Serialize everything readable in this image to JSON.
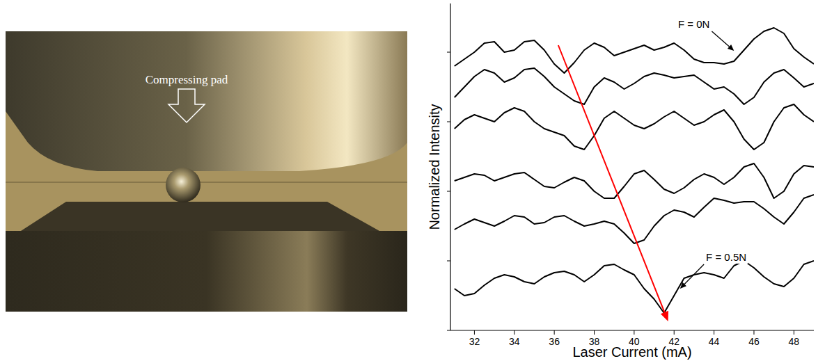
{
  "chart_data": {
    "type": "line",
    "x_label": "Laser Current (mA)",
    "y_label": "Normalized Intensity",
    "x": [
      31,
      31.5,
      32,
      32.5,
      33,
      33.5,
      34,
      34.5,
      35,
      35.5,
      36,
      36.5,
      37,
      37.5,
      38,
      38.5,
      39,
      39.5,
      40,
      40.5,
      41,
      41.5,
      42,
      42.5,
      43,
      43.5,
      44,
      44.5,
      45,
      45.5,
      46,
      46.5,
      47,
      47.5,
      48,
      48.5,
      49
    ],
    "series": [
      {
        "color": "#000000",
        "values": [
          380,
          390,
          400,
          413,
          415,
          400,
          403,
          415,
          417,
          403,
          383,
          370,
          385,
          403,
          413,
          407,
          395,
          400,
          405,
          410,
          403,
          407,
          413,
          403,
          390,
          385,
          385,
          383,
          387,
          403,
          419,
          430,
          435,
          427,
          405,
          393,
          383
        ]
      },
      {
        "color": "#000000",
        "values": [
          335,
          350,
          365,
          375,
          370,
          357,
          363,
          375,
          377,
          365,
          350,
          340,
          330,
          325,
          350,
          363,
          357,
          347,
          355,
          365,
          370,
          367,
          363,
          365,
          367,
          357,
          347,
          350,
          340,
          325,
          335,
          357,
          370,
          375,
          363,
          350,
          355
        ]
      },
      {
        "color": "#000000",
        "values": [
          290,
          303,
          310,
          305,
          300,
          313,
          320,
          315,
          300,
          290,
          285,
          280,
          265,
          260,
          280,
          305,
          315,
          305,
          295,
          290,
          297,
          307,
          315,
          305,
          295,
          300,
          310,
          317,
          300,
          275,
          260,
          270,
          300,
          320,
          325,
          310,
          300
        ]
      },
      {
        "color": "#000000",
        "values": [
          215,
          220,
          225,
          223,
          215,
          220,
          225,
          227,
          217,
          207,
          205,
          213,
          220,
          215,
          200,
          190,
          190,
          207,
          225,
          230,
          217,
          203,
          197,
          205,
          217,
          225,
          220,
          210,
          220,
          235,
          240,
          220,
          190,
          200,
          225,
          237,
          235
        ]
      },
      {
        "color": "#000000",
        "values": [
          145,
          153,
          160,
          155,
          150,
          157,
          165,
          163,
          153,
          155,
          163,
          165,
          157,
          150,
          153,
          157,
          153,
          140,
          125,
          130,
          150,
          165,
          173,
          170,
          163,
          177,
          190,
          187,
          183,
          185,
          185,
          175,
          163,
          153,
          170,
          190,
          195
        ]
      },
      {
        "color": "#000000",
        "values": [
          60,
          50,
          53,
          65,
          75,
          80,
          77,
          70,
          67,
          77,
          83,
          85,
          80,
          70,
          80,
          93,
          95,
          87,
          80,
          60,
          45,
          25,
          50,
          75,
          80,
          83,
          80,
          75,
          93,
          100,
          90,
          77,
          67,
          63,
          75,
          95,
          100
        ]
      }
    ],
    "xlim": [
      30.8,
      49
    ],
    "xticks": [
      32,
      34,
      36,
      38,
      40,
      42,
      44,
      46,
      48
    ],
    "ylim": [
      0,
      470
    ],
    "yticks": [
      0,
      100,
      200,
      300,
      400
    ],
    "tick_labels": "x",
    "grid": false,
    "annotations": [
      {
        "text": "F = 0N",
        "x": 42.2,
        "y": 435,
        "arrow_x": 45.0,
        "arrow_y": 402
      },
      {
        "text": "F = 0.5N",
        "x": 43.6,
        "y": 100,
        "arrow_x": 42.3,
        "arrow_y": 60
      }
    ],
    "trend_arrow": {
      "x": [
        36.2,
        41.7
      ],
      "y": [
        410,
        13
      ],
      "color": "#ff0000"
    }
  },
  "photo": {
    "label": "Compressing pad"
  }
}
